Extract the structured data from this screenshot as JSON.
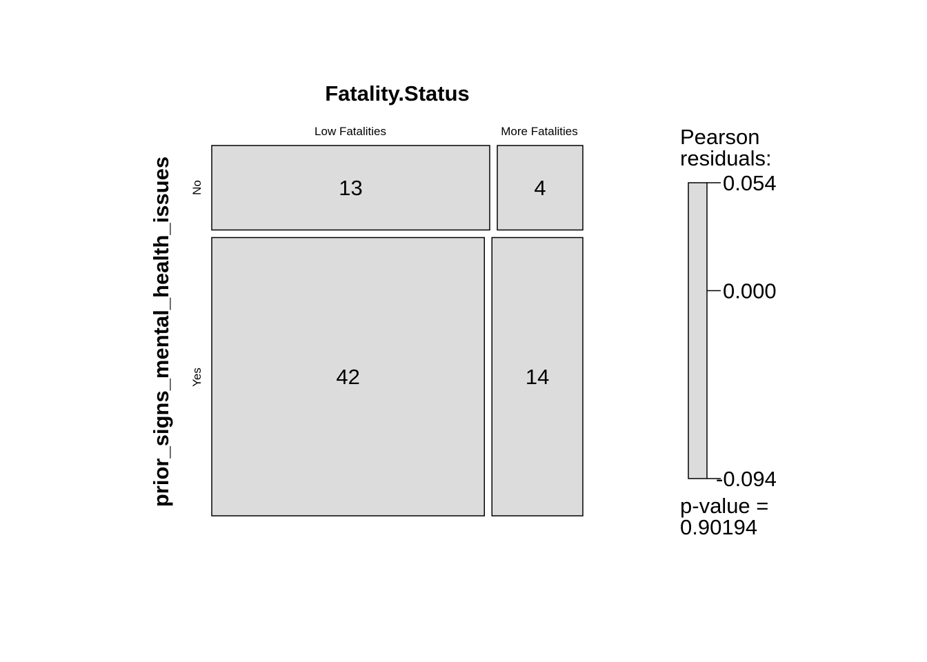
{
  "chart_data": {
    "type": "mosaic",
    "title": "Fatality.Status",
    "row_variable": "prior_signs_mental_health_issues",
    "col_variable": "Fatality.Status",
    "rows": [
      "No",
      "Yes"
    ],
    "columns": [
      "Low Fatalities",
      "More Fatalities"
    ],
    "counts": [
      [
        13,
        4
      ],
      [
        42,
        14
      ]
    ],
    "legend": {
      "title_line1": "Pearson",
      "title_line2": "residuals:",
      "max_label": "0.054",
      "mid_label": "0.000",
      "min_label": "-0.094",
      "max": 0.054,
      "mid": 0.0,
      "min": -0.094,
      "pvalue_line1": "p-value =",
      "pvalue_line2": "0.90194"
    },
    "colors": {
      "tile_fill": "#dcdcdc",
      "tile_stroke": "#000000",
      "background": "#ffffff"
    }
  }
}
